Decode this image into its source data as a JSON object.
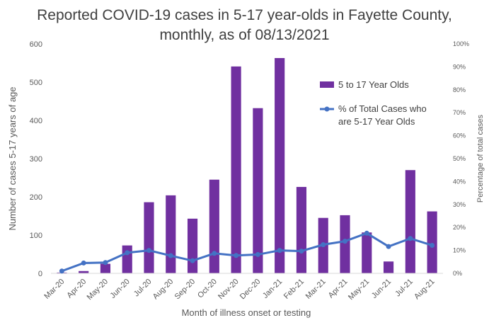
{
  "chart_data": {
    "type": "bar",
    "title_line1": "Reported COVID-19 cases in 5-17 year-olds in Fayette County,",
    "title_line2": "monthly, as of 08/13/2021",
    "xlabel": "Month of illness onset or testing",
    "ylabel": "Number of cases 5-17 years of age",
    "y2label": "Percentage of total cases",
    "categories": [
      "Mar-20",
      "Apr-20",
      "May-20",
      "Jun-20",
      "Jul-20",
      "Aug-20",
      "Sep-20",
      "Oct-20",
      "Nov-20",
      "Dec-20",
      "Jan-21",
      "Feb-21",
      "Mar-21",
      "Apr-21",
      "May-21",
      "Jun-21",
      "Jul-21",
      "Aug-21"
    ],
    "ylim": [
      0,
      600
    ],
    "yticks": [
      "0",
      "100",
      "200",
      "300",
      "400",
      "500",
      "600"
    ],
    "y2lim": [
      0,
      100
    ],
    "y2ticks": [
      "0%",
      "10%",
      "20%",
      "30%",
      "40%",
      "50%",
      "60%",
      "70%",
      "80%",
      "90%",
      "100%"
    ],
    "series": [
      {
        "name": "5 to 17 Year Olds",
        "type": "bar",
        "color": "#7030A0",
        "axis": "left",
        "values": [
          2,
          6,
          25,
          73,
          186,
          204,
          143,
          245,
          541,
          432,
          563,
          226,
          145,
          152,
          107,
          31,
          270,
          162
        ]
      },
      {
        "name": "% of Total Cases who are 5-17 Year Olds",
        "legend_lines": [
          "% of Total Cases who",
          "are 5-17 Year Olds"
        ],
        "type": "line",
        "color": "#4472C4",
        "axis": "right",
        "values": [
          1,
          4.5,
          4.7,
          9,
          10,
          7.7,
          5.5,
          8.7,
          7.8,
          8.2,
          10,
          9.7,
          12.5,
          14,
          17.5,
          11.7,
          15.2,
          12.2
        ]
      }
    ],
    "legend_position": "top-right",
    "grid": false
  }
}
